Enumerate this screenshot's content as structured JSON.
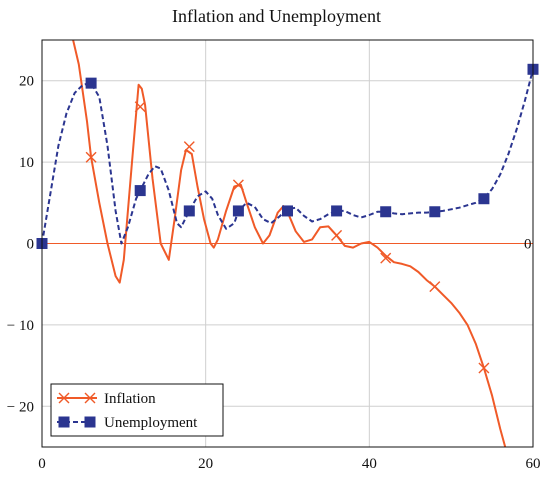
{
  "chart_data": {
    "type": "line",
    "title": "Inflation and Unemployment",
    "xlabel": "",
    "ylabel": "",
    "xlim": [
      0,
      60
    ],
    "ylim": [
      -25,
      25
    ],
    "x_ticks": [
      0,
      20,
      40,
      60
    ],
    "y_ticks": [
      -20,
      -10,
      0,
      10,
      20
    ],
    "x_tick_labels": [
      "0",
      "20",
      "40",
      "60"
    ],
    "y_tick_labels": [
      "− 20",
      "− 10",
      "0",
      "10",
      "20"
    ],
    "grid": true,
    "legend_position": "bottom-left",
    "zero_line_label": "0",
    "series": [
      {
        "name": "Inflation",
        "color": "#f05a28",
        "marker": "x",
        "line_style": "solid",
        "line": [
          [
            3.8,
            25
          ],
          [
            4.5,
            22
          ],
          [
            5.5,
            15
          ],
          [
            6,
            10.6
          ],
          [
            7,
            5
          ],
          [
            8,
            0
          ],
          [
            9,
            -4
          ],
          [
            9.5,
            -4.8
          ],
          [
            10,
            -2
          ],
          [
            11,
            10
          ],
          [
            11.8,
            19.5
          ],
          [
            12.2,
            19
          ],
          [
            12.6,
            17
          ],
          [
            13.5,
            8
          ],
          [
            14.5,
            0
          ],
          [
            15.5,
            -2
          ],
          [
            16.2,
            3
          ],
          [
            17,
            9
          ],
          [
            17.6,
            11.5
          ],
          [
            18.3,
            11
          ],
          [
            19,
            7
          ],
          [
            19.8,
            3
          ],
          [
            20.6,
            0
          ],
          [
            21,
            -0.5
          ],
          [
            21.5,
            0.5
          ],
          [
            22.5,
            4
          ],
          [
            23.5,
            7
          ],
          [
            24.3,
            7.2
          ],
          [
            25,
            5
          ],
          [
            26,
            2
          ],
          [
            27,
            0
          ],
          [
            27.8,
            1
          ],
          [
            28.8,
            3.8
          ],
          [
            29.5,
            4.6
          ],
          [
            30,
            3.9
          ],
          [
            31,
            1.5
          ],
          [
            32,
            0.2
          ],
          [
            33,
            0.5
          ],
          [
            34,
            2
          ],
          [
            35,
            2.1
          ],
          [
            36,
            1
          ],
          [
            37,
            -0.3
          ],
          [
            38,
            -0.5
          ],
          [
            39,
            0
          ],
          [
            40,
            0.2
          ],
          [
            41,
            -0.5
          ],
          [
            42,
            -1.5
          ],
          [
            43,
            -2.3
          ],
          [
            44,
            -2.5
          ],
          [
            45,
            -2.8
          ],
          [
            46,
            -3.5
          ],
          [
            47,
            -4.5
          ],
          [
            48,
            -5.3
          ],
          [
            49,
            -6.3
          ],
          [
            50,
            -7.3
          ],
          [
            51,
            -8.5
          ],
          [
            52,
            -10
          ],
          [
            53,
            -12.3
          ],
          [
            54,
            -15.3
          ],
          [
            55,
            -18.7
          ],
          [
            56,
            -22.8
          ],
          [
            56.6,
            -25
          ]
        ],
        "points": [
          [
            6,
            10.6
          ],
          [
            12,
            16.8
          ],
          [
            18,
            11.9
          ],
          [
            24,
            7.2
          ],
          [
            30,
            4
          ],
          [
            36,
            1
          ],
          [
            42,
            -1.8
          ],
          [
            48,
            -5.3
          ],
          [
            54,
            -15.3
          ]
        ]
      },
      {
        "name": "Unemployment",
        "color": "#2b3590",
        "marker": "square",
        "line_style": "dashed",
        "line": [
          [
            0,
            0
          ],
          [
            1,
            6
          ],
          [
            2,
            12
          ],
          [
            3,
            16
          ],
          [
            4,
            18.5
          ],
          [
            5,
            19.5
          ],
          [
            6,
            19.7
          ],
          [
            7,
            18
          ],
          [
            8,
            12
          ],
          [
            9,
            4
          ],
          [
            9.7,
            0
          ],
          [
            10.5,
            2
          ],
          [
            11.5,
            5.5
          ],
          [
            12,
            6.5
          ],
          [
            13,
            8.5
          ],
          [
            13.8,
            9.5
          ],
          [
            14.5,
            9.2
          ],
          [
            15.5,
            6.5
          ],
          [
            16.5,
            2.5
          ],
          [
            17,
            2
          ],
          [
            18,
            4
          ],
          [
            19,
            5.8
          ],
          [
            20,
            6.4
          ],
          [
            20.8,
            5.5
          ],
          [
            21.5,
            3.5
          ],
          [
            22.5,
            1.8
          ],
          [
            23.5,
            2.5
          ],
          [
            24,
            4
          ],
          [
            25,
            5
          ],
          [
            26,
            4.5
          ],
          [
            27,
            3
          ],
          [
            28,
            2.5
          ],
          [
            29,
            3.3
          ],
          [
            30,
            4.2
          ],
          [
            31,
            4.4
          ],
          [
            32,
            3.4
          ],
          [
            33,
            2.7
          ],
          [
            34,
            3
          ],
          [
            35,
            3.6
          ],
          [
            36,
            4
          ],
          [
            37,
            4
          ],
          [
            38,
            3.5
          ],
          [
            39,
            3.2
          ],
          [
            40,
            3.5
          ],
          [
            41,
            3.9
          ],
          [
            42,
            3.9
          ],
          [
            43,
            3.7
          ],
          [
            44,
            3.6
          ],
          [
            45,
            3.7
          ],
          [
            46,
            3.8
          ],
          [
            47,
            3.8
          ],
          [
            48,
            3.9
          ],
          [
            49,
            4
          ],
          [
            50,
            4.2
          ],
          [
            51,
            4.4
          ],
          [
            52,
            4.7
          ],
          [
            53,
            5
          ],
          [
            54,
            5.5
          ],
          [
            55,
            6.7
          ],
          [
            56,
            8.5
          ],
          [
            57,
            11
          ],
          [
            58,
            14
          ],
          [
            59,
            17.5
          ],
          [
            60,
            21.4
          ]
        ],
        "points": [
          [
            0,
            0
          ],
          [
            6,
            19.7
          ],
          [
            12,
            6.5
          ],
          [
            18,
            4
          ],
          [
            24,
            4
          ],
          [
            30,
            4
          ],
          [
            36,
            4
          ],
          [
            42,
            3.9
          ],
          [
            48,
            3.9
          ],
          [
            54,
            5.5
          ],
          [
            60,
            21.4
          ]
        ]
      }
    ]
  }
}
